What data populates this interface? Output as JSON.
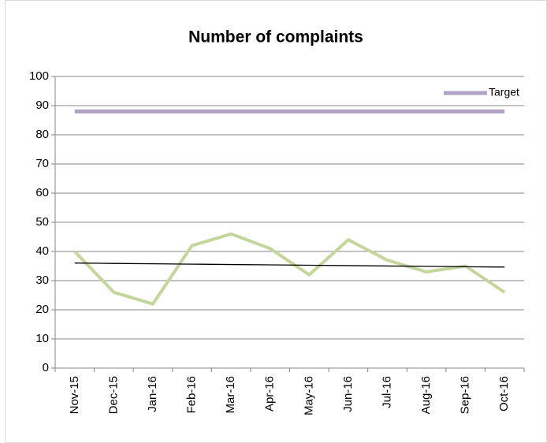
{
  "chart_data": {
    "type": "line",
    "title": "Number of complaints",
    "categories": [
      "Nov-15",
      "Dec-15",
      "Jan-16",
      "Feb-16",
      "Mar-16",
      "Apr-16",
      "May-16",
      "Jun-16",
      "Jul-16",
      "Aug-16",
      "Sep-16",
      "Oct-16"
    ],
    "series": [
      {
        "color": "#c3d69b",
        "values": [
          40,
          26,
          22,
          42,
          46,
          41,
          32,
          44,
          37,
          33,
          35,
          26
        ]
      },
      {
        "name": "Target",
        "color": "#b3a2c7",
        "values": [
          88,
          88,
          88,
          88,
          88,
          88,
          88,
          88,
          88,
          88,
          88,
          88
        ]
      },
      {
        "color": "#000000",
        "values": [
          36.03,
          35.9,
          35.78,
          35.65,
          35.52,
          35.4,
          35.27,
          35.15,
          35.02,
          34.89,
          34.77,
          34.64
        ]
      }
    ],
    "ylim": [
      0,
      100
    ],
    "yticks": [
      0,
      10,
      20,
      30,
      40,
      50,
      60,
      70,
      80,
      90,
      100
    ],
    "grid": true,
    "legend": "top-right"
  }
}
